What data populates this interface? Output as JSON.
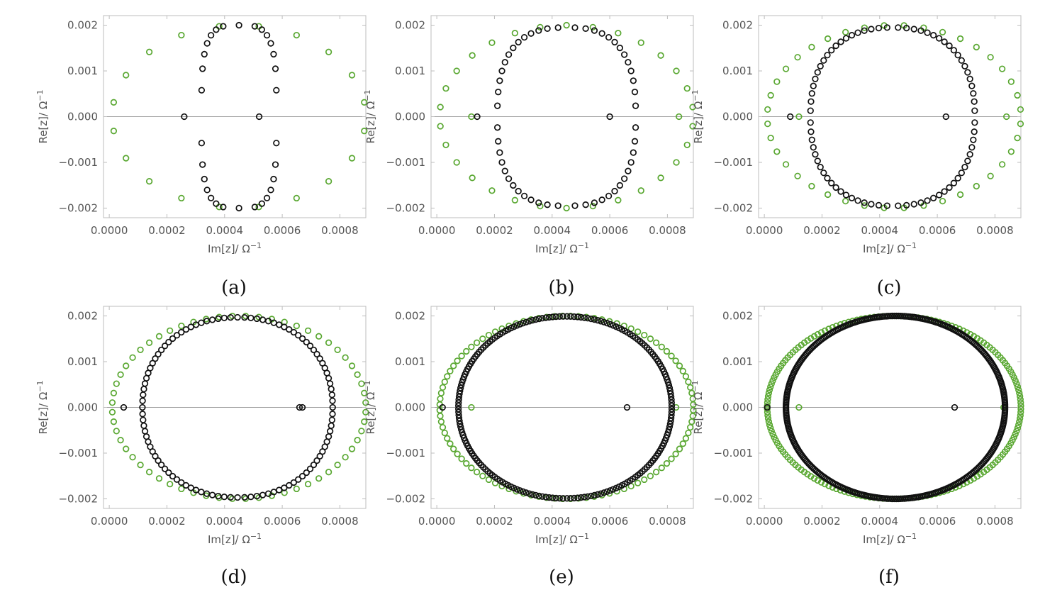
{
  "figure": {
    "colors": {
      "green": "#5aa832",
      "black": "#111111",
      "frame": "#bdbdbd",
      "zero_line": "#a0a0a0"
    }
  },
  "chart_data": [
    {
      "type": "scatter",
      "caption": "(a)",
      "n_black": 30,
      "n_green": 20,
      "xlabel": "Im[z]/ Ω⁻¹",
      "ylabel": "Re[z]/ Ω⁻¹",
      "xlim": [
        -2e-05,
        0.00089
      ],
      "ylim": [
        -0.00221,
        0.00221
      ],
      "xticks": [
        "0.0000",
        "0.0002",
        "0.0004",
        "0.0006",
        "0.0008"
      ],
      "xtick_values": [
        0,
        0.0002,
        0.0004,
        0.0006,
        0.0008
      ],
      "yticks": [
        "0.002",
        "0.001",
        "0.000",
        "−0.001",
        "−0.002"
      ],
      "ytick_values": [
        0.002,
        0.001,
        0,
        -0.001,
        -0.002
      ],
      "grid": false,
      "series": [
        {
          "color": "green",
          "shape": {
            "cx": 0.00045,
            "rx": 0.00044,
            "ry": 0.002,
            "p": 1.0,
            "zero": false
          },
          "extra": []
        },
        {
          "color": "black",
          "shape": {
            "cx": 0.00045,
            "rx": 0.00013,
            "ry": 0.002,
            "p": 0.55,
            "zero": false
          },
          "extra": [
            [
              0.00026,
              0
            ],
            [
              0.00052,
              0
            ]
          ]
        }
      ]
    },
    {
      "type": "scatter",
      "caption": "(b)",
      "n_black": 52,
      "n_green": 30,
      "xlabel": "Im[z]/ Ω⁻¹",
      "ylabel": "Re[z]/ Ω⁻¹",
      "xlim": [
        -2e-05,
        0.00089
      ],
      "ylim": [
        -0.00221,
        0.00221
      ],
      "xticks": [
        "0.0000",
        "0.0002",
        "0.0004",
        "0.0006",
        "0.0008"
      ],
      "xtick_values": [
        0,
        0.0002,
        0.0004,
        0.0006,
        0.0008
      ],
      "yticks": [
        "0.002",
        "0.001",
        "0.000",
        "−0.001",
        "−0.002"
      ],
      "ytick_values": [
        0.002,
        0.001,
        0,
        -0.001,
        -0.002
      ],
      "grid": false,
      "series": [
        {
          "color": "green",
          "shape": {
            "cx": 0.00045,
            "rx": 0.00044,
            "ry": 0.002,
            "p": 1.0,
            "zero": false
          },
          "extra": [
            [
              0.00012,
              0
            ],
            [
              0.00084,
              0
            ]
          ]
        },
        {
          "color": "black",
          "shape": {
            "cx": 0.00045,
            "rx": 0.00024,
            "ry": 0.00195,
            "p": 0.75,
            "zero": false
          },
          "extra": [
            [
              0.00014,
              0
            ],
            [
              0.0006,
              0
            ]
          ]
        }
      ]
    },
    {
      "type": "scatter",
      "caption": "(c)",
      "n_black": 76,
      "n_green": 40,
      "xlabel": "Im[z]/ Ω⁻¹",
      "ylabel": "Re[z]/ Ω⁻¹",
      "xlim": [
        -2e-05,
        0.00089
      ],
      "ylim": [
        -0.00221,
        0.00221
      ],
      "xticks": [
        "0.0000",
        "0.0002",
        "0.0004",
        "0.0006",
        "0.0008"
      ],
      "xtick_values": [
        0,
        0.0002,
        0.0004,
        0.0006,
        0.0008
      ],
      "yticks": [
        "0.002",
        "0.001",
        "0.000",
        "−0.001",
        "−0.002"
      ],
      "ytick_values": [
        0.002,
        0.001,
        0,
        -0.001,
        -0.002
      ],
      "grid": false,
      "series": [
        {
          "color": "green",
          "shape": {
            "cx": 0.00045,
            "rx": 0.00044,
            "ry": 0.002,
            "p": 1.0,
            "zero": false
          },
          "extra": [
            [
              0.00012,
              0
            ],
            [
              0.00084,
              0
            ]
          ]
        },
        {
          "color": "black",
          "shape": {
            "cx": 0.000445,
            "rx": 0.000285,
            "ry": 0.00195,
            "p": 0.85,
            "zero": false
          },
          "extra": [
            [
              9e-05,
              0
            ],
            [
              0.00063,
              0
            ]
          ]
        }
      ]
    },
    {
      "type": "scatter",
      "caption": "(d)",
      "n_black": 104,
      "n_green": 60,
      "xlabel": "Im[z]/ Ω⁻¹",
      "ylabel": "Re[z]/ Ω⁻¹",
      "xlim": [
        -2e-05,
        0.00089
      ],
      "ylim": [
        -0.00221,
        0.00221
      ],
      "xticks": [
        "0.0000",
        "0.0002",
        "0.0004",
        "0.0006",
        "0.0008"
      ],
      "xtick_values": [
        0,
        0.0002,
        0.0004,
        0.0006,
        0.0008
      ],
      "yticks": [
        "0.002",
        "0.001",
        "0.000",
        "−0.001",
        "−0.002"
      ],
      "ytick_values": [
        0.002,
        0.001,
        0,
        -0.001,
        -0.002
      ],
      "grid": false,
      "series": [
        {
          "color": "green",
          "shape": {
            "cx": 0.00045,
            "rx": 0.00044,
            "ry": 0.002,
            "p": 1.0,
            "zero": false
          },
          "extra": []
        },
        {
          "color": "black",
          "shape": {
            "cx": 0.000445,
            "rx": 0.00033,
            "ry": 0.00197,
            "p": 0.93,
            "zero": true
          },
          "extra": [
            [
              5e-05,
              0
            ],
            [
              0.00066,
              0
            ],
            [
              0.00067,
              0
            ]
          ]
        }
      ]
    },
    {
      "type": "scatter",
      "caption": "(e)",
      "n_black": 200,
      "n_green": 100,
      "xlabel": "Im[z]/ Ω⁻¹",
      "ylabel": "Re[z]/ Ω⁻¹",
      "xlim": [
        -2e-05,
        0.00089
      ],
      "ylim": [
        -0.00221,
        0.00221
      ],
      "xticks": [
        "0.0000",
        "0.0002",
        "0.0004",
        "0.0006",
        "0.0008"
      ],
      "xtick_values": [
        0,
        0.0002,
        0.0004,
        0.0006,
        0.0008
      ],
      "yticks": [
        "0.002",
        "0.001",
        "0.000",
        "−0.001",
        "−0.002"
      ],
      "ytick_values": [
        0.002,
        0.001,
        0,
        -0.001,
        -0.002
      ],
      "grid": false,
      "series": [
        {
          "color": "green",
          "shape": {
            "cx": 0.00045,
            "rx": 0.00044,
            "ry": 0.002,
            "p": 1.0,
            "zero": false
          },
          "extra": [
            [
              0.00012,
              0
            ],
            [
              0.00083,
              0
            ]
          ]
        },
        {
          "color": "black",
          "shape": {
            "cx": 0.000445,
            "rx": 0.00037,
            "ry": 0.00199,
            "p": 0.97,
            "zero": false
          },
          "extra": [
            [
              2e-05,
              0
            ],
            [
              0.00066,
              0
            ]
          ]
        }
      ]
    },
    {
      "type": "scatter",
      "caption": "(f)",
      "n_black": 360,
      "n_green": 180,
      "xlabel": "Im[z]/ Ω⁻¹",
      "ylabel": "Re[z]/ Ω⁻¹",
      "xlim": [
        -2e-05,
        0.00089
      ],
      "ylim": [
        -0.00221,
        0.00221
      ],
      "xticks": [
        "0.0000",
        "0.0002",
        "0.0004",
        "0.0006",
        "0.0008"
      ],
      "xtick_values": [
        0,
        0.0002,
        0.0004,
        0.0006,
        0.0008
      ],
      "yticks": [
        "0.002",
        "0.001",
        "0.000",
        "−0.001",
        "−0.002"
      ],
      "ytick_values": [
        0.002,
        0.001,
        0,
        -0.001,
        -0.002
      ],
      "grid": false,
      "series": [
        {
          "color": "green",
          "shape": {
            "cx": 0.00045,
            "rx": 0.00044,
            "ry": 0.002,
            "p": 1.0,
            "zero": false
          },
          "extra": [
            [
              0.00012,
              0
            ],
            [
              0.00083,
              0
            ]
          ]
        },
        {
          "color": "black",
          "shape": {
            "cx": 0.000455,
            "rx": 0.00038,
            "ry": 0.002,
            "p": 0.99,
            "zero": false
          },
          "extra": [
            [
              1e-05,
              0
            ],
            [
              0.00066,
              0
            ]
          ]
        }
      ]
    }
  ]
}
